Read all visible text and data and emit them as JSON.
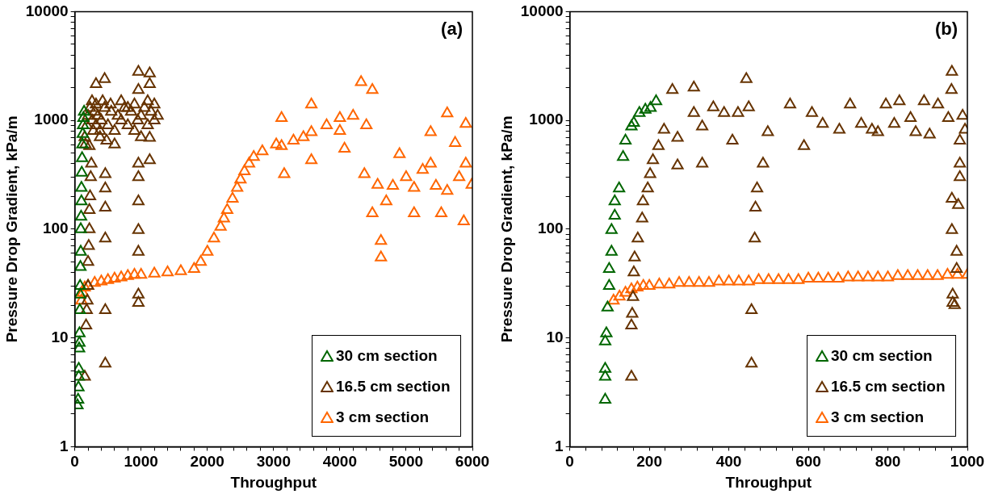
{
  "chart_data": [
    {
      "type": "scatter",
      "xlabel": "Throughput",
      "ylabel": "Pressure Drop Gradient, kPa/m",
      "log": "y",
      "marker": "triangle",
      "legend": "bottom right",
      "annotations": [
        "(a)"
      ],
      "xlim": [
        0,
        6000
      ],
      "ylim": [
        1,
        10000
      ],
      "xticks": [
        0,
        {
          "value": 200,
          "label": null
        },
        {
          "value": 400,
          "label": null
        },
        {
          "value": 600,
          "label": null
        },
        {
          "value": 800,
          "label": null
        },
        1000,
        {
          "value": 1200,
          "label": null
        },
        {
          "value": 1400,
          "label": null
        },
        {
          "value": 1600,
          "label": null
        },
        {
          "value": 1800,
          "label": null
        },
        2000,
        {
          "value": 2200,
          "label": null
        },
        {
          "value": 2400,
          "label": null
        },
        {
          "value": 2600,
          "label": null
        },
        {
          "value": 2800,
          "label": null
        },
        3000,
        {
          "value": 3200,
          "label": null
        },
        {
          "value": 3400,
          "label": null
        },
        {
          "value": 3600,
          "label": null
        },
        {
          "value": 3800,
          "label": null
        },
        4000,
        {
          "value": 4200,
          "label": null
        },
        {
          "value": 4400,
          "label": null
        },
        {
          "value": 4600,
          "label": null
        },
        {
          "value": 4800,
          "label": null
        },
        5000,
        {
          "value": 5200,
          "label": null
        },
        {
          "value": 5400,
          "label": null
        },
        {
          "value": 5600,
          "label": null
        },
        {
          "value": 5800,
          "label": null
        },
        6000
      ],
      "yticks": [
        1,
        {
          "value": 2,
          "label": null
        },
        {
          "value": 3,
          "label": null
        },
        {
          "value": 4,
          "label": null
        },
        {
          "value": 5,
          "label": null
        },
        {
          "value": 6,
          "label": null
        },
        {
          "value": 7,
          "label": null
        },
        {
          "value": 8,
          "label": null
        },
        {
          "value": 9,
          "label": null
        },
        10,
        {
          "value": 20,
          "label": null
        },
        {
          "value": 30,
          "label": null
        },
        {
          "value": 40,
          "label": null
        },
        {
          "value": 50,
          "label": null
        },
        {
          "value": 60,
          "label": null
        },
        {
          "value": 70,
          "label": null
        },
        {
          "value": 80,
          "label": null
        },
        {
          "value": 90,
          "label": null
        },
        100,
        {
          "value": 200,
          "label": null
        },
        {
          "value": 300,
          "label": null
        },
        {
          "value": 400,
          "label": null
        },
        {
          "value": 500,
          "label": null
        },
        {
          "value": 600,
          "label": null
        },
        {
          "value": 700,
          "label": null
        },
        {
          "value": 800,
          "label": null
        },
        {
          "value": 900,
          "label": null
        },
        1000,
        {
          "value": 2000,
          "label": null
        },
        {
          "value": 3000,
          "label": null
        },
        {
          "value": 4000,
          "label": null
        },
        {
          "value": 5000,
          "label": null
        },
        {
          "value": 6000,
          "label": null
        },
        {
          "value": 7000,
          "label": null
        },
        {
          "value": 8000,
          "label": null
        },
        {
          "value": 9000,
          "label": null
        },
        10000
      ],
      "series": [
        {
          "name": "30 cm section",
          "color": "#006600",
          "x": [
            40,
            50,
            55,
            60,
            60,
            65,
            70,
            70,
            75,
            80,
            80,
            85,
            90,
            90,
            95,
            100,
            100,
            105,
            110,
            115,
            120,
            125,
            130,
            140
          ],
          "values": [
            2.4,
            2.7,
            3.5,
            4.4,
            5.2,
            8,
            9,
            11,
            18,
            25,
            30,
            45,
            62,
            100,
            130,
            180,
            240,
            330,
            450,
            600,
            750,
            900,
            1050,
            1200
          ]
        },
        {
          "name": "16.5 cm section",
          "color": "#663300",
          "x": [
            150,
            170,
            180,
            190,
            200,
            200,
            210,
            220,
            220,
            230,
            240,
            250,
            150,
            180,
            200,
            230,
            260,
            280,
            300,
            320,
            350,
            380,
            400,
            450,
            500,
            550,
            600,
            650,
            700,
            750,
            800,
            850,
            900,
            950,
            1000,
            1050,
            1100,
            1150,
            1200,
            1250,
            160,
            220,
            260,
            320,
            380,
            420,
            480,
            540,
            600,
            700,
            800,
            900,
            1000,
            1100,
            1200,
            320,
            450,
            460,
            460,
            460,
            460,
            460,
            460,
            960,
            960,
            960,
            960,
            960,
            960,
            960,
            960,
            960,
            1130,
            1130,
            1130,
            1130
          ],
          "values": [
            4.4,
            13,
            18,
            22,
            30,
            50,
            70,
            100,
            150,
            200,
            300,
            400,
            700,
            900,
            1100,
            1300,
            1000,
            800,
            1200,
            900,
            1100,
            800,
            1000,
            1300,
            900,
            1200,
            800,
            1100,
            1000,
            1300,
            900,
            1200,
            800,
            1000,
            1100,
            1300,
            900,
            1200,
            1000,
            1100,
            600,
            580,
            1500,
            1400,
            700,
            1500,
            650,
            1400,
            600,
            1500,
            1300,
            1400,
            700,
            1500,
            1400,
            2150,
            2400,
            5.8,
            18,
            82,
            158,
            237,
            320,
            21,
            25,
            62,
            98,
            180,
            300,
            400,
            1900,
            2800,
            2700,
            2150,
            430,
            690
          ]
        },
        {
          "name": "3 cm section",
          "color": "#ff6600",
          "x": [
            100,
            120,
            150,
            200,
            300,
            400,
            500,
            600,
            700,
            800,
            900,
            1000,
            1200,
            1400,
            1600,
            1800,
            1900,
            2000,
            2100,
            2200,
            2250,
            2300,
            2380,
            2450,
            2500,
            2560,
            2630,
            2700,
            2830,
            3040,
            3120,
            3160,
            3120,
            3300,
            3450,
            3570,
            3570,
            3570,
            3800,
            4000,
            4070,
            4000,
            4200,
            4320,
            4490,
            4370,
            4400,
            4570,
            4490,
            4620,
            4620,
            4700,
            4800,
            4900,
            5000,
            5120,
            5120,
            5250,
            5370,
            5370,
            5450,
            5530,
            5620,
            5620,
            5740,
            5800,
            5870,
            5900,
            5900,
            5990
          ],
          "values": [
            22,
            26,
            29,
            30,
            32,
            33,
            34,
            35,
            36,
            37,
            38,
            38,
            39,
            40,
            41,
            43,
            50,
            62,
            82,
            105,
            125,
            150,
            190,
            240,
            285,
            340,
            400,
            460,
            520,
            600,
            580,
            320,
            1050,
            650,
            700,
            780,
            430,
            1400,
            900,
            1050,
            550,
            800,
            1100,
            2250,
            1900,
            320,
            900,
            255,
            140,
            55,
            78,
            180,
            250,
            490,
            300,
            240,
            140,
            350,
            780,
            400,
            250,
            140,
            1160,
            225,
            620,
            300,
            118,
            930,
            400,
            255
          ]
        }
      ]
    },
    {
      "type": "scatter",
      "xlabel": "Throughput",
      "ylabel": "Pressure Drop Gradient, kPa/m",
      "log": "y",
      "marker": "triangle",
      "legend": "bottom right",
      "annotations": [
        "(b)"
      ],
      "xlim": [
        0,
        1000
      ],
      "ylim": [
        1,
        10000
      ],
      "xticks": [
        0,
        {
          "value": 40,
          "label": null
        },
        {
          "value": 80,
          "label": null
        },
        {
          "value": 120,
          "label": null
        },
        {
          "value": 160,
          "label": null
        },
        200,
        {
          "value": 240,
          "label": null
        },
        {
          "value": 280,
          "label": null
        },
        {
          "value": 320,
          "label": null
        },
        {
          "value": 360,
          "label": null
        },
        400,
        {
          "value": 440,
          "label": null
        },
        {
          "value": 480,
          "label": null
        },
        {
          "value": 520,
          "label": null
        },
        {
          "value": 560,
          "label": null
        },
        600,
        {
          "value": 640,
          "label": null
        },
        {
          "value": 680,
          "label": null
        },
        {
          "value": 720,
          "label": null
        },
        {
          "value": 760,
          "label": null
        },
        800,
        {
          "value": 840,
          "label": null
        },
        {
          "value": 880,
          "label": null
        },
        {
          "value": 920,
          "label": null
        },
        {
          "value": 960,
          "label": null
        },
        1000
      ],
      "yticks": [
        1,
        {
          "value": 2,
          "label": null
        },
        {
          "value": 3,
          "label": null
        },
        {
          "value": 4,
          "label": null
        },
        {
          "value": 5,
          "label": null
        },
        {
          "value": 6,
          "label": null
        },
        {
          "value": 7,
          "label": null
        },
        {
          "value": 8,
          "label": null
        },
        {
          "value": 9,
          "label": null
        },
        10,
        {
          "value": 20,
          "label": null
        },
        {
          "value": 30,
          "label": null
        },
        {
          "value": 40,
          "label": null
        },
        {
          "value": 50,
          "label": null
        },
        {
          "value": 60,
          "label": null
        },
        {
          "value": 70,
          "label": null
        },
        {
          "value": 80,
          "label": null
        },
        {
          "value": 90,
          "label": null
        },
        100,
        {
          "value": 200,
          "label": null
        },
        {
          "value": 300,
          "label": null
        },
        {
          "value": 400,
          "label": null
        },
        {
          "value": 500,
          "label": null
        },
        {
          "value": 600,
          "label": null
        },
        {
          "value": 700,
          "label": null
        },
        {
          "value": 800,
          "label": null
        },
        {
          "value": 900,
          "label": null
        },
        1000,
        {
          "value": 2000,
          "label": null
        },
        {
          "value": 3000,
          "label": null
        },
        {
          "value": 4000,
          "label": null
        },
        {
          "value": 5000,
          "label": null
        },
        {
          "value": 6000,
          "label": null
        },
        {
          "value": 7000,
          "label": null
        },
        {
          "value": 8000,
          "label": null
        },
        {
          "value": 9000,
          "label": null
        },
        10000
      ],
      "series": [
        {
          "name": "30 cm section",
          "color": "#006600",
          "x": [
            89,
            89,
            89,
            89,
            92,
            95,
            99,
            99,
            105,
            105,
            113,
            113,
            124,
            134,
            140,
            155,
            161,
            175,
            190,
            203,
            217
          ],
          "values": [
            2.7,
            4.4,
            5.2,
            9.3,
            11,
            19,
            30,
            43,
            62,
            98,
            133,
            180,
            237,
            460,
            650,
            880,
            950,
            1170,
            1250,
            1300,
            1500
          ]
        },
        {
          "name": "16.5 cm section",
          "color": "#663300",
          "x": [
            155,
            155,
            157,
            159,
            161,
            163,
            171,
            182,
            184,
            196,
            202,
            209,
            223,
            237,
            258,
            271,
            271,
            312,
            312,
            333,
            333,
            361,
            388,
            409,
            423,
            444,
            450,
            457,
            457,
            465,
            467,
            471,
            486,
            498,
            554,
            589,
            609,
            636,
            678,
            705,
            733,
            760,
            775,
            795,
            816,
            829,
            857,
            870,
            891,
            905,
            926,
            952,
            961,
            960,
            988,
            994,
            981,
            981,
            981,
            961,
            977,
            961,
            973,
            973,
            963,
            963,
            968
          ],
          "values": [
            4.4,
            13,
            16.7,
            23.8,
            40,
            55,
            82,
            125,
            180,
            237,
            320,
            430,
            580,
            820,
            1900,
            690,
            385,
            2000,
            1170,
            400,
            880,
            1320,
            1170,
            650,
            1170,
            2400,
            1320,
            5.8,
            18,
            82,
            158,
            237,
            400,
            780,
            1400,
            580,
            1170,
            930,
            820,
            1400,
            930,
            820,
            780,
            1400,
            930,
            1500,
            1050,
            780,
            1500,
            740,
            1400,
            1050,
            2800,
            1900,
            1100,
            820,
            650,
            400,
            300,
            190,
            167,
            98,
            62,
            43,
            25,
            21,
            20
          ]
        },
        {
          "name": "3 cm section",
          "color": "#ff6600",
          "x": [
            110,
            125,
            140,
            155,
            170,
            185,
            200,
            225,
            250,
            275,
            300,
            325,
            350,
            375,
            400,
            425,
            450,
            475,
            500,
            525,
            550,
            575,
            600,
            625,
            650,
            675,
            700,
            725,
            750,
            775,
            800,
            825,
            850,
            875,
            900,
            925,
            950,
            975,
            1000
          ],
          "values": [
            22,
            24,
            26,
            28,
            29,
            30,
            30,
            31,
            31,
            32,
            32,
            32,
            32,
            33,
            33,
            33,
            33,
            34,
            34,
            34,
            34,
            34,
            35,
            35,
            35,
            35,
            36,
            36,
            36,
            36,
            36,
            37,
            37,
            37,
            37,
            37,
            38,
            38,
            38
          ]
        }
      ]
    }
  ]
}
